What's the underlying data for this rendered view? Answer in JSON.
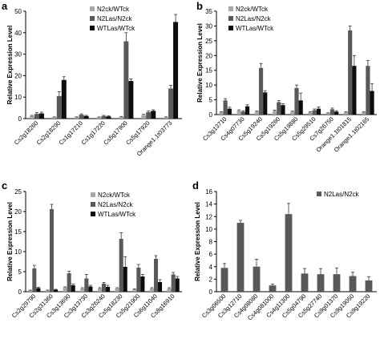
{
  "colors": {
    "N2ck/WTck": "#a6a6a6",
    "N2Las/N2ck": "#595959",
    "WTLas/WTck": "#0d0d0d"
  },
  "chart_data": [
    {
      "panel": "a",
      "type": "bar",
      "ylabel": "Relative Expression Level",
      "ylim": [
        0,
        50
      ],
      "yticks": [
        0,
        10,
        20,
        30,
        40,
        50
      ],
      "categories": [
        "Cs2g18260",
        "Cs2g18290",
        "Cs1g17210",
        "Cs1g17220",
        "Cs5g17900",
        "Cs5g17920",
        "Orange1.1t03773"
      ],
      "series": [
        {
          "name": "N2ck/WTck",
          "values": [
            1.2,
            0.6,
            0.6,
            0.6,
            0.8,
            1.6,
            0.6
          ],
          "errors": [
            0.3,
            0.2,
            0.2,
            0.2,
            0.2,
            0.4,
            0.2
          ]
        },
        {
          "name": "N2Las/N2ck",
          "values": [
            2.2,
            10.5,
            1.8,
            1.2,
            36.0,
            3.0,
            14.0
          ],
          "errors": [
            0.6,
            2.0,
            0.4,
            0.3,
            4.0,
            0.5,
            1.5
          ]
        },
        {
          "name": "WTLas/WTck",
          "values": [
            2.4,
            18.0,
            1.2,
            1.0,
            17.5,
            3.6,
            45.0
          ],
          "errors": [
            0.6,
            1.5,
            0.3,
            0.3,
            1.0,
            0.5,
            3.5
          ]
        }
      ]
    },
    {
      "panel": "b",
      "type": "bar",
      "ylabel": "Relative Expression Level",
      "ylim": [
        0,
        35
      ],
      "yticks": [
        0,
        5,
        10,
        15,
        20,
        25,
        30,
        35
      ],
      "categories": [
        "Cs3g13710",
        "Cs4g07730",
        "Cs5g19240",
        "Cs5g19260",
        "Cs5g19880",
        "Cs5g29510",
        "Cs7g26750",
        "Orange1.1t01815",
        "Orange1.1t02165"
      ],
      "series": [
        {
          "name": "N2ck/WTck",
          "values": [
            0.8,
            1.3,
            1.0,
            1.2,
            1.0,
            0.8,
            0.5,
            0.8,
            0.8
          ],
          "errors": [
            0.2,
            0.3,
            0.2,
            0.3,
            0.2,
            0.2,
            0.1,
            0.2,
            0.2
          ]
        },
        {
          "name": "N2Las/N2ck",
          "values": [
            4.8,
            1.0,
            15.8,
            4.2,
            9.0,
            1.5,
            1.8,
            28.5,
            16.5
          ],
          "errors": [
            0.6,
            0.3,
            1.5,
            0.5,
            1.0,
            0.4,
            0.4,
            1.5,
            1.8
          ]
        },
        {
          "name": "WTLas/WTck",
          "values": [
            2.0,
            2.8,
            7.5,
            3.2,
            4.8,
            2.0,
            1.0,
            16.5,
            8.0
          ],
          "errors": [
            0.5,
            0.5,
            0.6,
            0.5,
            2.5,
            0.6,
            0.3,
            3.5,
            2.5
          ]
        }
      ]
    },
    {
      "panel": "c",
      "type": "bar",
      "ylabel": "Relative Expression Level",
      "ylim": [
        0,
        25
      ],
      "yticks": [
        0,
        5,
        10,
        15,
        20,
        25
      ],
      "categories": [
        "Cs2g29790",
        "Cs2g31360",
        "Cs3g13690",
        "Cs3g13730",
        "Cs3g26240",
        "Cs5g18230",
        "Cs5g21900",
        "Cs6g11040",
        "Cs8g16910"
      ],
      "series": [
        {
          "name": "N2ck/WTck",
          "values": [
            0.3,
            0.3,
            1.0,
            0.8,
            0.8,
            0.8,
            0.6,
            0.8,
            0.8
          ],
          "errors": [
            0.1,
            0.1,
            0.2,
            0.2,
            0.2,
            0.2,
            0.1,
            0.2,
            0.2
          ]
        },
        {
          "name": "N2Las/N2ck",
          "values": [
            5.8,
            20.6,
            4.6,
            3.3,
            2.0,
            13.2,
            6.0,
            8.2,
            4.3
          ],
          "errors": [
            0.8,
            1.2,
            0.5,
            1.0,
            0.3,
            1.5,
            0.8,
            0.8,
            0.5
          ]
        },
        {
          "name": "WTLas/WTck",
          "values": [
            0.9,
            0.5,
            1.6,
            1.3,
            1.2,
            6.2,
            3.8,
            2.4,
            3.3
          ],
          "errors": [
            0.2,
            0.1,
            0.3,
            0.3,
            0.4,
            2.5,
            0.5,
            0.6,
            0.5
          ]
        }
      ]
    },
    {
      "panel": "d",
      "type": "bar",
      "ylabel": "Relative Expression Level",
      "ylim": [
        0,
        16
      ],
      "yticks": [
        0,
        2,
        4,
        6,
        8,
        10,
        12,
        14,
        16
      ],
      "categories": [
        "Cs3g06500",
        "Cs3g12710",
        "Cs4g08080",
        "Cs4g081000",
        "Cs4g11300",
        "Cs5g04790",
        "Cs5g27740",
        "Cs9g01370",
        "Cs9g19050",
        "Cs9g19220"
      ],
      "series": [
        {
          "name": "N2Las/N2ck",
          "values": [
            3.8,
            11.0,
            4.0,
            1.0,
            12.4,
            2.9,
            2.8,
            2.8,
            2.5,
            1.8
          ],
          "errors": [
            0.7,
            0.4,
            1.2,
            0.2,
            1.7,
            0.8,
            0.9,
            1.0,
            0.6,
            0.6
          ]
        }
      ]
    }
  ]
}
